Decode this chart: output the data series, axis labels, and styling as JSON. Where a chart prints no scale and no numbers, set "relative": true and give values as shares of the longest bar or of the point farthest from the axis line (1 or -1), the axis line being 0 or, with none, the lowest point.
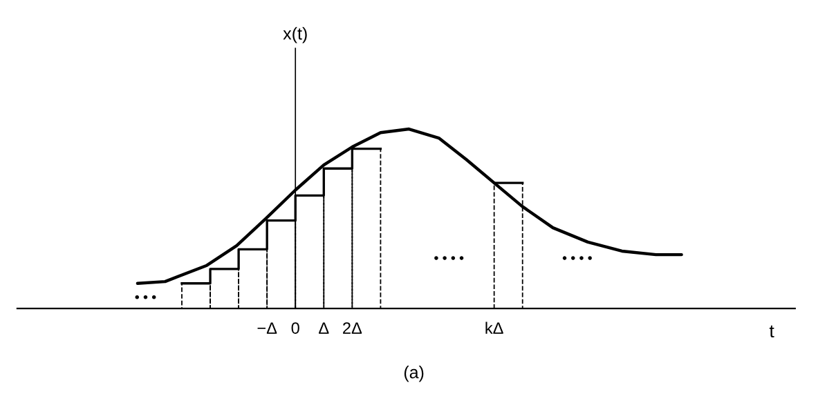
{
  "chart_data": {
    "type": "line",
    "relative": true,
    "xlabel": "t",
    "xlim": [
      -9.8,
      17.6
    ],
    "xticks": [
      {
        "value": -1,
        "label": "−Δ"
      },
      {
        "value": 0,
        "label": "0"
      },
      {
        "value": 1,
        "label": "Δ"
      },
      {
        "value": 2,
        "label": "2Δ"
      },
      {
        "value": 7,
        "label": "kΔ"
      }
    ],
    "tick_labels": "x",
    "grid": false,
    "marker": "none",
    "series": [
      {
        "color": "#000000",
        "line_style": "solid",
        "x": [
          -5.56,
          -4.59,
          -3.12,
          -2.07,
          -1.05,
          0,
          1,
          2,
          3,
          4,
          5.05,
          6.02,
          7,
          7.98,
          9.07,
          10.3,
          11.5,
          12.7,
          13.6
        ],
        "values": [
          0.14,
          0.15,
          0.24,
          0.35,
          0.5,
          0.66,
          0.8,
          0.9,
          0.98,
          1.0,
          0.95,
          0.83,
          0.7,
          0.57,
          0.45,
          0.37,
          0.32,
          0.3,
          0.3
        ]
      },
      {
        "type": "step",
        "color": "#000000",
        "line_style": "solid",
        "x": [
          -4,
          -3,
          -2,
          -1,
          0,
          1,
          2,
          3
        ],
        "values": [
          0.14,
          0.22,
          0.33,
          0.49,
          0.63,
          0.78,
          0.89,
          0.89
        ]
      },
      {
        "type": "step",
        "color": "#000000",
        "line_style": "solid",
        "x": [
          7,
          8
        ],
        "values": [
          0.7,
          0.7
        ]
      },
      {
        "type": "bar",
        "color": "#000000",
        "line_style": "dashed",
        "x": [
          -3.5,
          -2.5,
          -1.5,
          -0.5,
          0.5,
          1.5,
          2.5,
          7.5
        ],
        "values": [
          0.14,
          0.22,
          0.33,
          0.49,
          0.63,
          0.78,
          0.89,
          0.7
        ]
      }
    ],
    "annotations": [
      "x(t)",
      "• • •",
      "• • • •",
      "• • • •",
      "(a)"
    ]
  }
}
